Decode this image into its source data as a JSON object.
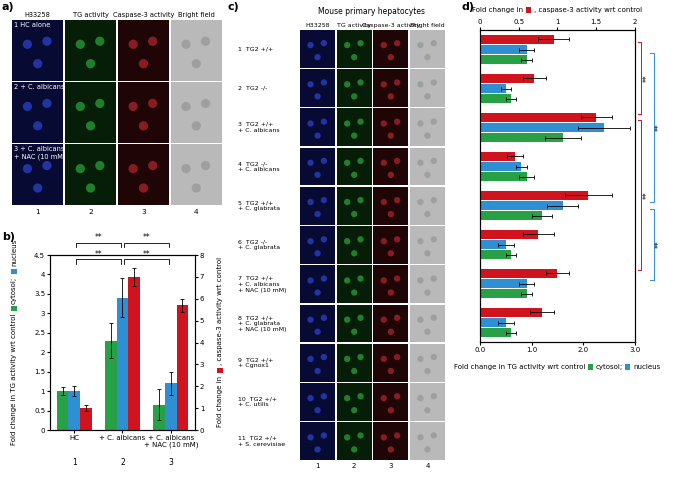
{
  "panel_labels": [
    "a)",
    "b)",
    "c)",
    "d)"
  ],
  "image_panels": [
    {
      "columns": [
        "H33258",
        "TG activity",
        "Caspase-3 activity",
        "Bright field"
      ],
      "column_numbers": [
        "1",
        "2",
        "3",
        "4"
      ],
      "rows": [
        "1 HC alone",
        "2 + C. albicans",
        "3 + C. albicans\n+ NAC (10 mM)"
      ]
    },
    {
      "title": "Mouse primary hepatocytes",
      "columns": [
        "H33258",
        "TG activity",
        "Caspase-3 activity",
        "Bright field"
      ],
      "column_numbers": [
        "1",
        "2",
        "3",
        "4"
      ],
      "rows": [
        "1  TG2 +/+",
        "2  TG2 -/-",
        "3  TG2 +/+\n+ C. albicans",
        "4  TG2 -/-\n+ C. albicans",
        "5  TG2 +/+\n+ C. glabrata",
        "6  TG2 -/-\n+ C. glabrata",
        "7  TG2 +/+\n+ C. albicans\n+ NAC (10 mM)",
        "8  TG2 +/+\n+ C. glabrata\n+ NAC (10 mM)",
        "9  TG2 +/+\n+ Cgnox1",
        "10  TG2 +/+\n+ C. utilis",
        "11  TG2 +/+\n+ S. cerevisiae"
      ]
    }
  ],
  "chart_data": [
    {
      "type": "bar",
      "categories": [
        "HC",
        "+ C. albicans",
        "+ C. albicans\n+ NAC (10 mM)"
      ],
      "category_numbers": [
        "1",
        "2",
        "3"
      ],
      "ylabel": "Fold change in TG activity wrt control",
      "y2label": [
        "Fold change in",
        ", caspase-3 activity wrt control"
      ],
      "ylim": [
        0,
        4.5
      ],
      "yticks": [
        0,
        0.5,
        1,
        1.5,
        2,
        2.5,
        3,
        3.5,
        4,
        4.5
      ],
      "y2lim": [
        0,
        8
      ],
      "y2ticks": [
        0,
        1,
        2,
        3,
        4,
        5,
        6,
        7,
        8
      ],
      "series": [
        {
          "name": "cytosol;",
          "color": "#27a046",
          "values": [
            1.0,
            2.3,
            0.65
          ],
          "errors": [
            0.1,
            0.45,
            0.4
          ]
        },
        {
          "name": "nucleus",
          "color": "#2f8fd3",
          "values": [
            1.0,
            3.4,
            1.2
          ],
          "errors": [
            0.12,
            0.5,
            0.3
          ]
        },
        {
          "color": "#d0141e",
          "axis": "y2",
          "values": [
            1.0,
            7.0,
            5.7
          ],
          "errors": [
            0.15,
            0.4,
            0.3
          ]
        }
      ],
      "significance": [
        {
          "from": 0,
          "to": 1,
          "label": "**"
        },
        {
          "from": 1,
          "to": 2,
          "label": "**"
        },
        {
          "from": 0,
          "to": 1,
          "label": "**"
        },
        {
          "from": 1,
          "to": 2,
          "label": "**"
        }
      ]
    },
    {
      "type": "bar",
      "orientation": "horizontal",
      "tick_labels": "x",
      "categories": [
        null,
        null,
        null,
        null,
        null,
        null,
        null,
        null
      ],
      "xlabel": "Fold change in TG activity wrt control",
      "x2label": [
        "Fold change in",
        ", caspase-3 activity wrt control"
      ],
      "xlim": [
        0,
        3
      ],
      "xticks": [
        {
          "value": 0,
          "label": "0.0"
        },
        {
          "value": 1,
          "label": "1.0"
        },
        {
          "value": 2,
          "label": "2.0"
        },
        {
          "value": 3,
          "label": "3.0"
        }
      ],
      "x2lim": [
        0,
        2
      ],
      "x2ticks": [
        0,
        0.5,
        1,
        1.5,
        2
      ],
      "series": [
        {
          "color": "#d0141e",
          "axis": "x2",
          "values": [
            0.95,
            0.7,
            1.5,
            0.45,
            1.4,
            0.75,
            1.0,
            0.8
          ],
          "errors": [
            0.2,
            0.15,
            0.2,
            0.1,
            0.3,
            0.2,
            0.15,
            0.15
          ]
        },
        {
          "name": "nucleus",
          "color": "#2f8fd3",
          "values": [
            0.9,
            0.5,
            2.4,
            0.8,
            1.6,
            0.5,
            0.9,
            0.5
          ],
          "errors": [
            0.15,
            0.1,
            0.5,
            0.1,
            0.3,
            0.15,
            0.15,
            0.15
          ]
        },
        {
          "name": "cytosol;",
          "color": "#27a046",
          "values": [
            0.9,
            0.6,
            1.6,
            0.9,
            1.2,
            0.6,
            0.9,
            0.6
          ],
          "errors": [
            0.1,
            0.1,
            0.35,
            0.15,
            0.2,
            0.1,
            0.1,
            0.1
          ]
        }
      ],
      "significance": [
        {
          "from": 0,
          "to": 2,
          "label": "**",
          "series": 0
        },
        {
          "from": 2,
          "to": 6,
          "label": "**",
          "series": 0
        },
        {
          "from": 0,
          "to": 4,
          "label": "**",
          "series": 1
        },
        {
          "from": 4,
          "to": 6,
          "label": "**",
          "series": 1
        }
      ]
    }
  ]
}
